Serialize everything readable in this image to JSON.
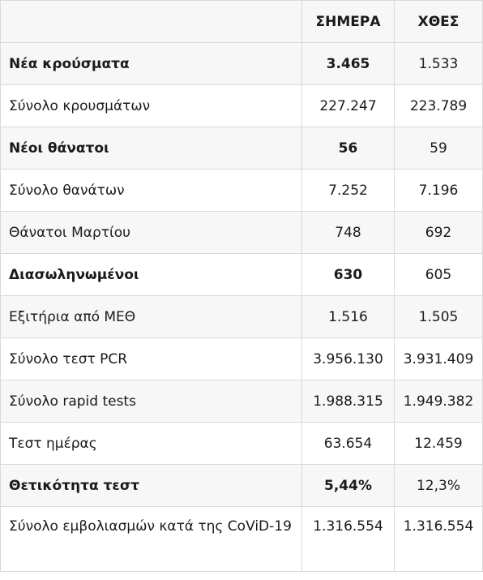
{
  "table": {
    "headers": {
      "label": "",
      "today": "ΣΗΜΕΡΑ",
      "yesterday": "ΧΘΕΣ"
    },
    "rows": [
      {
        "label": "Νέα κρούσματα",
        "today": "3.465",
        "yesterday": "1.533",
        "bold": true
      },
      {
        "label": "Σύνολο κρουσμάτων",
        "today": "227.247",
        "yesterday": "223.789",
        "bold": false
      },
      {
        "label": "Νέοι θάνατοι",
        "today": "56",
        "yesterday": "59",
        "bold": true
      },
      {
        "label": "Σύνολο θανάτων",
        "today": "7.252",
        "yesterday": "7.196",
        "bold": false
      },
      {
        "label": "Θάνατοι Μαρτίου",
        "today": "748",
        "yesterday": "692",
        "bold": false
      },
      {
        "label": "Διασωληνωμένοι",
        "today": "630",
        "yesterday": "605",
        "bold": true
      },
      {
        "label": "Εξιτήρια από ΜΕΘ",
        "today": "1.516",
        "yesterday": "1.505",
        "bold": false
      },
      {
        "label": "Σύνολο τεστ PCR",
        "today": "3.956.130",
        "yesterday": "3.931.409",
        "bold": false
      },
      {
        "label": "Σύνολο rapid tests",
        "today": "1.988.315",
        "yesterday": "1.949.382",
        "bold": false
      },
      {
        "label": "Τεστ ημέρας",
        "today": "63.654",
        "yesterday": "12.459",
        "bold": false
      },
      {
        "label": "Θετικότητα τεστ",
        "today": "5,44%",
        "yesterday": "12,3%",
        "bold": true
      },
      {
        "label": "Σύνολο εμβολιασμών κατά της CoViD-19",
        "today": "1.316.554",
        "yesterday": "1.316.554",
        "bold": false
      }
    ]
  }
}
